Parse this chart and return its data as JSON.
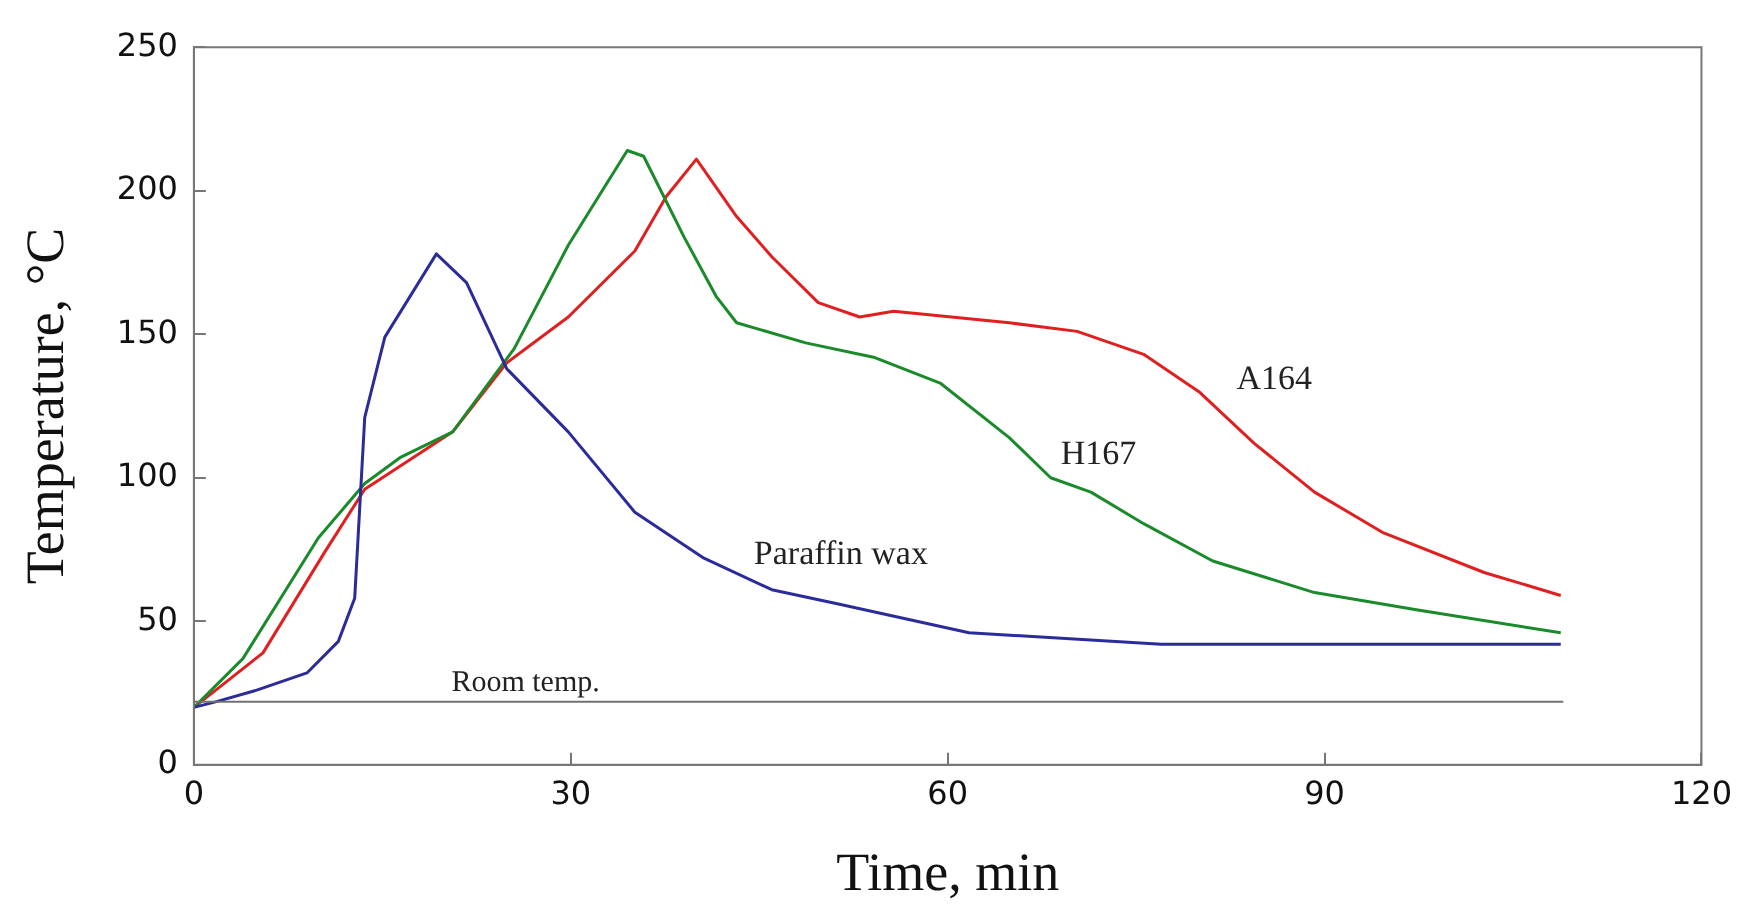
{
  "chart_data": {
    "type": "line",
    "xlabel": "Time, min",
    "ylabel": "Temperature, °C",
    "xlim": [
      0,
      120
    ],
    "xticks": [
      0,
      30,
      60,
      90,
      120
    ],
    "ylim": [
      0,
      250
    ],
    "yticks": [
      0,
      50,
      100,
      150,
      200,
      250
    ],
    "grid": false,
    "legend": false,
    "marker": "none",
    "line_style": "solid",
    "series": [
      {
        "name": "Paraffin wax",
        "color": "#2b2b9a",
        "x": [
          0,
          1.8,
          5,
          9,
          11.5,
          12.8,
          13.6,
          15.2,
          19.3,
          21.7,
          24.9,
          29.8,
          35.1,
          40.6,
          46,
          51.3,
          61.7,
          77,
          108.8
        ],
        "values": [
          20,
          22,
          26,
          32,
          43,
          58,
          121,
          149,
          178,
          168,
          138,
          116,
          88,
          72,
          61,
          56,
          46,
          42,
          42
        ]
      },
      {
        "name": "H167",
        "color": "#1a8a2a",
        "x": [
          0,
          3.9,
          9.9,
          13.6,
          16.4,
          20.6,
          25.5,
          29.8,
          32.5,
          34.5,
          35.8,
          39,
          41.6,
          43.2,
          48.7,
          54.1,
          59.4,
          64.9,
          68.2,
          71.4,
          75.6,
          81.1,
          89.2,
          97.3,
          108.8
        ],
        "values": [
          20,
          37,
          79,
          98,
          107,
          116,
          145,
          181,
          200,
          214,
          212,
          184,
          163,
          154,
          147,
          142,
          133,
          114,
          100,
          95,
          84,
          71,
          60,
          54,
          46
        ]
      },
      {
        "name": "A164",
        "color": "#e02020",
        "x": [
          0,
          5.5,
          10.4,
          13.6,
          20.6,
          24.9,
          29.8,
          35.1,
          37.6,
          40,
          43.2,
          46,
          49.7,
          53,
          55.7,
          64.9,
          70.3,
          75.6,
          80,
          84.4,
          89.2,
          94.6,
          102.7,
          108.8
        ],
        "values": [
          20,
          39,
          74,
          96,
          116,
          140,
          156,
          179,
          198,
          211,
          191,
          177,
          161,
          156,
          158,
          154,
          151,
          143,
          130,
          112,
          95,
          81,
          67,
          59
        ]
      }
    ],
    "ref_lines": [
      {
        "axis": "y",
        "value": 22,
        "label": "Room temp.",
        "color": "#707070"
      }
    ]
  }
}
